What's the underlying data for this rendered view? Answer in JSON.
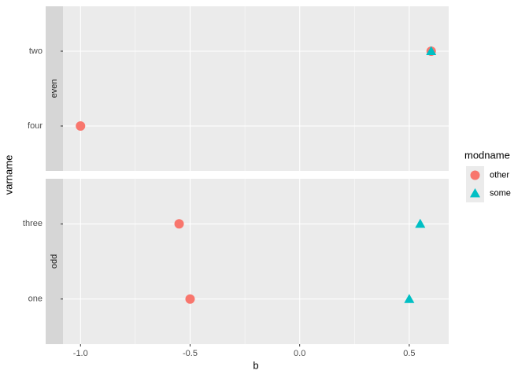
{
  "chart_data": {
    "type": "scatter",
    "xlabel": "b",
    "ylabel": "varname",
    "xlim": [
      -1.08,
      0.68
    ],
    "xticks": [
      {
        "value": -1,
        "label": "-1.0"
      },
      -0.5,
      {
        "value": 0,
        "label": "0.0"
      },
      0.5
    ],
    "grid": true,
    "legend_title": "modname",
    "series": [
      {
        "name": "other",
        "color": "#F8766D",
        "shape": "circle"
      },
      {
        "name": "some",
        "color": "#00BFC4",
        "shape": "triangle"
      }
    ],
    "panels": [
      {
        "label": "even",
        "categories": [
          "four",
          "two"
        ],
        "values": [
          [
            -1.0,
            0.6
          ],
          [
            null,
            0.6
          ]
        ]
      },
      {
        "label": "odd",
        "categories": [
          "one",
          "three"
        ],
        "values": [
          [
            -0.5,
            -0.55
          ],
          [
            0.5,
            0.55
          ]
        ]
      }
    ]
  }
}
